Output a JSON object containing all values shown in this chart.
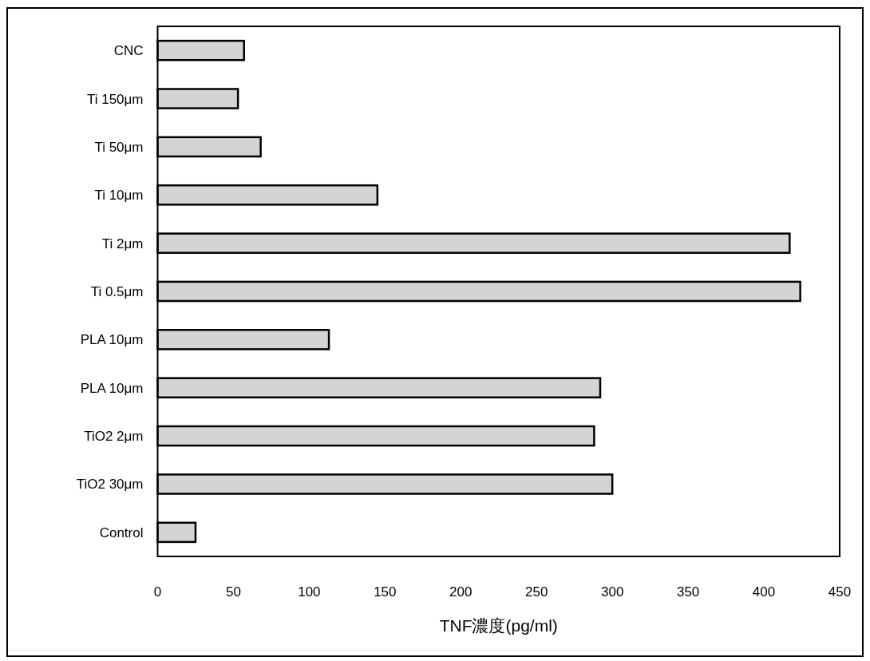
{
  "chart_data": {
    "type": "bar",
    "orientation": "horizontal",
    "xlabel": "TNF濃度(pg/ml)",
    "categories": [
      "CNC",
      "Ti 150μm",
      "Ti 50μm",
      "Ti 10μm",
      "Ti 2μm",
      "Ti 0.5μm",
      "PLA 10μm",
      "PLA 10μm",
      "TiO2 2μm",
      "TiO2 30μm",
      "Control"
    ],
    "values": [
      57,
      53,
      68,
      145,
      417,
      424,
      113,
      292,
      288,
      300,
      25
    ],
    "color": "#d4d4d4",
    "xlim": [
      0,
      450
    ],
    "xticks": [
      0,
      50,
      100,
      150,
      200,
      250,
      300,
      350,
      400,
      450
    ],
    "grid": false
  }
}
